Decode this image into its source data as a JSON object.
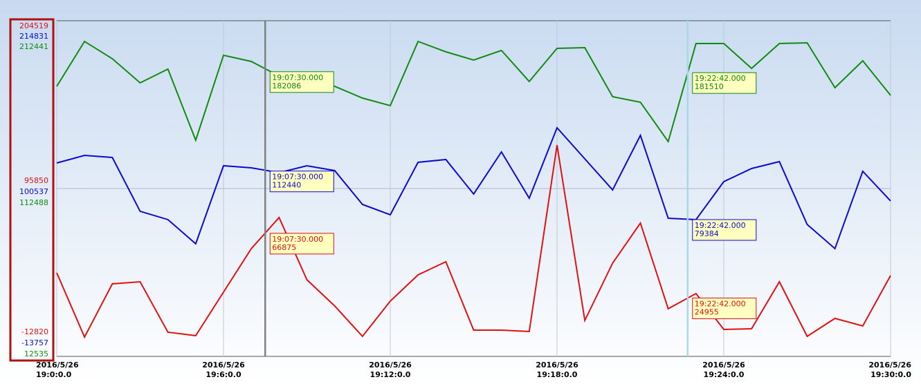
{
  "chart_data": {
    "type": "line",
    "x": [
      "2016/5/26 19:0:0.0",
      "2016/5/26 19:1:0.0",
      "2016/5/26 19:2:0.0",
      "2016/5/26 19:3:0.0",
      "2016/5/26 19:4:0.0",
      "2016/5/26 19:5:0.0",
      "2016/5/26 19:6:0.0",
      "2016/5/26 19:7:0.0",
      "2016/5/26 19:8:0.0",
      "2016/5/26 19:9:0.0",
      "2016/5/26 19:10:0.0",
      "2016/5/26 19:11:0.0",
      "2016/5/26 19:12:0.0",
      "2016/5/26 19:13:0.0",
      "2016/5/26 19:14:0.0",
      "2016/5/26 19:15:0.0",
      "2016/5/26 19:16:0.0",
      "2016/5/26 19:17:0.0",
      "2016/5/26 19:18:0.0",
      "2016/5/26 19:19:0.0",
      "2016/5/26 19:20:0.0",
      "2016/5/26 19:21:0.0",
      "2016/5/26 19:22:0.0",
      "2016/5/26 19:23:0.0",
      "2016/5/26 19:24:0.0",
      "2016/5/26 19:25:0.0",
      "2016/5/26 19:26:0.0",
      "2016/5/26 19:27:0.0",
      "2016/5/26 19:28:0.0",
      "2016/5/26 19:29:0.0",
      "2016/5/26 19:30:0.0"
    ],
    "xlim": [
      "2016/5/26 19:0:0.0",
      "2016/5/26 19:30:0.0"
    ],
    "xticks": [
      "2016/5/26 19:0:0.0",
      "2016/5/26 19:6:0.0",
      "2016/5/26 19:12:0.0",
      "2016/5/26 19:18:0.0",
      "2016/5/26 19:24:0.0",
      "2016/5/26 19:30:0.0"
    ],
    "grid": true,
    "series": [
      {
        "color": "#e01010",
        "ylim": [
          -12820,
          204519
        ],
        "yticks": [
          -12820,
          95850,
          204519
        ],
        "values": [
          41291,
          -299,
          34136,
          35477,
          2832,
          596,
          28769,
          56943,
          77067,
          36819,
          19825,
          149,
          22956,
          39949,
          48446,
          4173,
          4173,
          3279,
          124023,
          10434,
          47552,
          73489,
          18037,
          27875,
          4621,
          5068,
          35477,
          149,
          11776,
          6857,
          39502
        ]
      },
      {
        "color": "#0a0ad0",
        "ylim": [
          -13757,
          214831
        ],
        "yticks": [
          -13757,
          100537,
          214831
        ],
        "values": [
          117949,
          123122,
          121712,
          85028,
          79385,
          62924,
          116068,
          114657,
          111365,
          116068,
          112776,
          89731,
          82677,
          118419,
          120301,
          96786,
          125474,
          93964,
          141934,
          120771,
          99607,
          136761,
          80325,
          79385,
          105251,
          114187,
          118890,
          76092,
          59632,
          112306,
          92083
        ]
      },
      {
        "color": "#108a10",
        "ylim": [
          12535,
          212441
        ],
        "yticks": [
          12535,
          112488,
          212441
        ],
        "values": [
          173367,
          200102,
          189819,
          175424,
          183650,
          141286,
          191876,
          188174,
          179537,
          177480,
          173367,
          166375,
          161851,
          200102,
          193932,
          188997,
          194755,
          176247,
          195989,
          196400,
          167198,
          163908,
          140463,
          198868,
          198868,
          184061,
          198868,
          199279,
          172545,
          188586,
          168021
        ]
      }
    ],
    "cursors": [
      {
        "time": "19:07:30.000",
        "color": "#808080",
        "values": [
          66875,
          112440,
          182086
        ]
      },
      {
        "time": "19:22:42.000",
        "color": "#a8d8e8",
        "values": [
          24955,
          79384,
          181510
        ]
      }
    ]
  }
}
